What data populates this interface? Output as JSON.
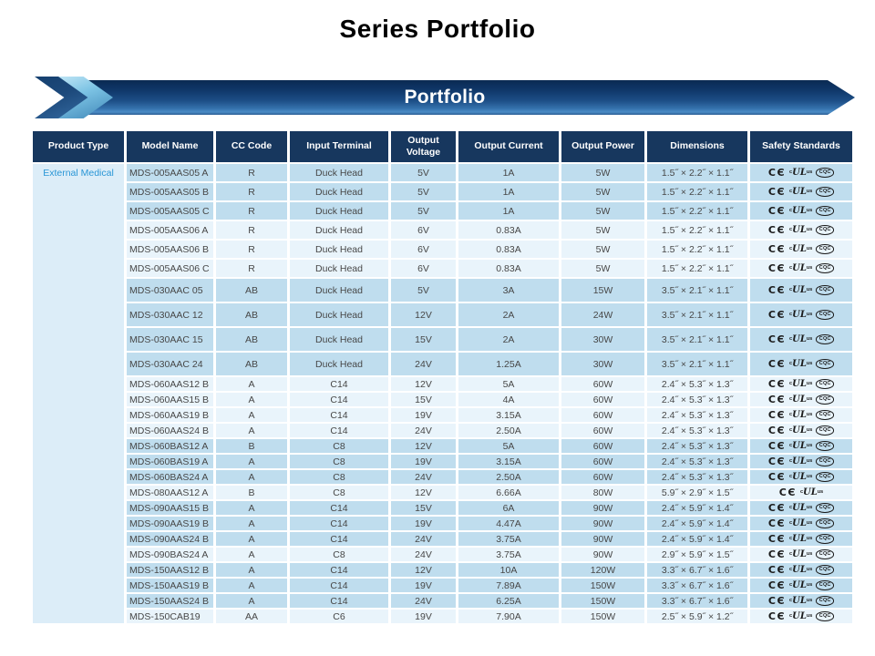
{
  "page": {
    "title": "Series Portfolio"
  },
  "banner": {
    "label": "Portfolio",
    "bar_color": "#17375E",
    "chevron_light_color": "#7cc3e4"
  },
  "icons": {
    "ce": {
      "label": "CE mark",
      "glyph": "CЄ"
    },
    "cul": {
      "label": "cULus mark",
      "prefix": "c",
      "core": "UL",
      "suffix": "us"
    },
    "cqc": {
      "label": "CQC mark",
      "glyph": "CQC"
    }
  },
  "table": {
    "columns": [
      "Product Type",
      "Model Name",
      "CC Code",
      "Input Terminal",
      "Output Voltage",
      "Output Current",
      "Output Power",
      "Dimensions",
      "Safety Standards"
    ],
    "product_type": "External Medical",
    "rows": [
      {
        "model": "MDS-005AAS05 A",
        "cc": "R",
        "input": "Duck Head",
        "voltage": "5V",
        "current": "1A",
        "power": "5W",
        "dimensions": "1.5˝ × 2.2˝ × 1.1˝",
        "safety": [
          "ce",
          "cul",
          "cqc"
        ],
        "band": "dark"
      },
      {
        "model": "MDS-005AAS05 B",
        "cc": "R",
        "input": "Duck Head",
        "voltage": "5V",
        "current": "1A",
        "power": "5W",
        "dimensions": "1.5˝ × 2.2˝ × 1.1˝",
        "safety": [
          "ce",
          "cul",
          "cqc"
        ],
        "band": "dark"
      },
      {
        "model": "MDS-005AAS05 C",
        "cc": "R",
        "input": "Duck Head",
        "voltage": "5V",
        "current": "1A",
        "power": "5W",
        "dimensions": "1.5˝ × 2.2˝ × 1.1˝",
        "safety": [
          "ce",
          "cul",
          "cqc"
        ],
        "band": "dark"
      },
      {
        "model": "MDS-005AAS06 A",
        "cc": "R",
        "input": "Duck Head",
        "voltage": "6V",
        "current": "0.83A",
        "power": "5W",
        "dimensions": "1.5˝ × 2.2˝ × 1.1˝",
        "safety": [
          "ce",
          "cul",
          "cqc"
        ],
        "band": "light"
      },
      {
        "model": "MDS-005AAS06 B",
        "cc": "R",
        "input": "Duck Head",
        "voltage": "6V",
        "current": "0.83A",
        "power": "5W",
        "dimensions": "1.5˝ × 2.2˝ × 1.1˝",
        "safety": [
          "ce",
          "cul",
          "cqc"
        ],
        "band": "light"
      },
      {
        "model": "MDS-005AAS06 C",
        "cc": "R",
        "input": "Duck Head",
        "voltage": "6V",
        "current": "0.83A",
        "power": "5W",
        "dimensions": "1.5˝ × 2.2˝ × 1.1˝",
        "safety": [
          "ce",
          "cul",
          "cqc"
        ],
        "band": "light"
      },
      {
        "model": "MDS-030AAC 05",
        "cc": "AB",
        "input": "Duck Head",
        "voltage": "5V",
        "current": "3A",
        "power": "15W",
        "dimensions": "3.5˝ × 2.1˝ × 1.1˝",
        "safety": [
          "ce",
          "cul",
          "cqc"
        ],
        "band": "dark"
      },
      {
        "model": "MDS-030AAC 12",
        "cc": "AB",
        "input": "Duck Head",
        "voltage": "12V",
        "current": "2A",
        "power": "24W",
        "dimensions": "3.5˝ × 2.1˝ × 1.1˝",
        "safety": [
          "ce",
          "cul",
          "cqc"
        ],
        "band": "dark"
      },
      {
        "model": "MDS-030AAC 15",
        "cc": "AB",
        "input": "Duck Head",
        "voltage": "15V",
        "current": "2A",
        "power": "30W",
        "dimensions": "3.5˝ × 2.1˝ × 1.1˝",
        "safety": [
          "ce",
          "cul",
          "cqc"
        ],
        "band": "dark"
      },
      {
        "model": "MDS-030AAC 24",
        "cc": "AB",
        "input": "Duck Head",
        "voltage": "24V",
        "current": "1.25A",
        "power": "30W",
        "dimensions": "3.5˝ × 2.1˝ × 1.1˝",
        "safety": [
          "ce",
          "cul",
          "cqc"
        ],
        "band": "dark"
      },
      {
        "model": "MDS-060AAS12 B",
        "cc": "A",
        "input": "C14",
        "voltage": "12V",
        "current": "5A",
        "power": "60W",
        "dimensions": "2.4˝ × 5.3˝ × 1.3˝",
        "safety": [
          "ce",
          "cul",
          "cqc"
        ],
        "band": "light"
      },
      {
        "model": "MDS-060AAS15 B",
        "cc": "A",
        "input": "C14",
        "voltage": "15V",
        "current": "4A",
        "power": "60W",
        "dimensions": "2.4˝ × 5.3˝ × 1.3˝",
        "safety": [
          "ce",
          "cul",
          "cqc"
        ],
        "band": "light"
      },
      {
        "model": "MDS-060AAS19 B",
        "cc": "A",
        "input": "C14",
        "voltage": "19V",
        "current": "3.15A",
        "power": "60W",
        "dimensions": "2.4˝ × 5.3˝ × 1.3˝",
        "safety": [
          "ce",
          "cul",
          "cqc"
        ],
        "band": "light"
      },
      {
        "model": "MDS-060AAS24 B",
        "cc": "A",
        "input": "C14",
        "voltage": "24V",
        "current": "2.50A",
        "power": "60W",
        "dimensions": "2.4˝ × 5.3˝ × 1.3˝",
        "safety": [
          "ce",
          "cul",
          "cqc"
        ],
        "band": "light"
      },
      {
        "model": "MDS-060BAS12 A",
        "cc": "B",
        "input": "C8",
        "voltage": "12V",
        "current": "5A",
        "power": "60W",
        "dimensions": "2.4˝ × 5.3˝ × 1.3˝",
        "safety": [
          "ce",
          "cul",
          "cqc"
        ],
        "band": "dark"
      },
      {
        "model": "MDS-060BAS19 A",
        "cc": "A",
        "input": "C8",
        "voltage": "19V",
        "current": "3.15A",
        "power": "60W",
        "dimensions": "2.4˝ × 5.3˝ × 1.3˝",
        "safety": [
          "ce",
          "cul",
          "cqc"
        ],
        "band": "dark"
      },
      {
        "model": "MDS-060BAS24 A",
        "cc": "A",
        "input": "C8",
        "voltage": "24V",
        "current": "2.50A",
        "power": "60W",
        "dimensions": "2.4˝ × 5.3˝ × 1.3˝",
        "safety": [
          "ce",
          "cul",
          "cqc"
        ],
        "band": "dark"
      },
      {
        "model": "MDS-080AAS12 A",
        "cc": "B",
        "input": "C8",
        "voltage": "12V",
        "current": "6.66A",
        "power": "80W",
        "dimensions": "5.9˝ × 2.9˝ × 1.5˝",
        "safety": [
          "ce",
          "cul"
        ],
        "band": "light"
      },
      {
        "model": "MDS-090AAS15 B",
        "cc": "A",
        "input": "C14",
        "voltage": "15V",
        "current": "6A",
        "power": "90W",
        "dimensions": "2.4˝ × 5.9˝ × 1.4˝",
        "safety": [
          "ce",
          "cul",
          "cqc"
        ],
        "band": "dark"
      },
      {
        "model": "MDS-090AAS19 B",
        "cc": "A",
        "input": "C14",
        "voltage": "19V",
        "current": "4.47A",
        "power": "90W",
        "dimensions": "2.4˝ × 5.9˝ × 1.4˝",
        "safety": [
          "ce",
          "cul",
          "cqc"
        ],
        "band": "dark"
      },
      {
        "model": "MDS-090AAS24 B",
        "cc": "A",
        "input": "C14",
        "voltage": "24V",
        "current": "3.75A",
        "power": "90W",
        "dimensions": "2.4˝ × 5.9˝ × 1.4˝",
        "safety": [
          "ce",
          "cul",
          "cqc"
        ],
        "band": "dark"
      },
      {
        "model": "MDS-090BAS24 A",
        "cc": "A",
        "input": "C8",
        "voltage": "24V",
        "current": "3.75A",
        "power": "90W",
        "dimensions": "2.9˝ × 5.9˝ × 1.5˝",
        "safety": [
          "ce",
          "cul",
          "cqc"
        ],
        "band": "light"
      },
      {
        "model": "MDS-150AAS12 B",
        "cc": "A",
        "input": "C14",
        "voltage": "12V",
        "current": "10A",
        "power": "120W",
        "dimensions": "3.3˝ × 6.7˝ × 1.6˝",
        "safety": [
          "ce",
          "cul",
          "cqc"
        ],
        "band": "dark"
      },
      {
        "model": "MDS-150AAS19 B",
        "cc": "A",
        "input": "C14",
        "voltage": "19V",
        "current": "7.89A",
        "power": "150W",
        "dimensions": "3.3˝ × 6.7˝ × 1.6˝",
        "safety": [
          "ce",
          "cul",
          "cqc"
        ],
        "band": "dark"
      },
      {
        "model": "MDS-150AAS24 B",
        "cc": "A",
        "input": "C14",
        "voltage": "24V",
        "current": "6.25A",
        "power": "150W",
        "dimensions": "3.3˝ × 6.7˝ × 1.6˝",
        "safety": [
          "ce",
          "cul",
          "cqc"
        ],
        "band": "dark"
      },
      {
        "model": "MDS-150CAB19",
        "cc": "AA",
        "input": "C6",
        "voltage": "19V",
        "current": "7.90A",
        "power": "150W",
        "dimensions": "2.5˝ × 5.9˝ × 1.2˝",
        "safety": [
          "ce",
          "cul",
          "cqc"
        ],
        "band": "light"
      }
    ]
  }
}
